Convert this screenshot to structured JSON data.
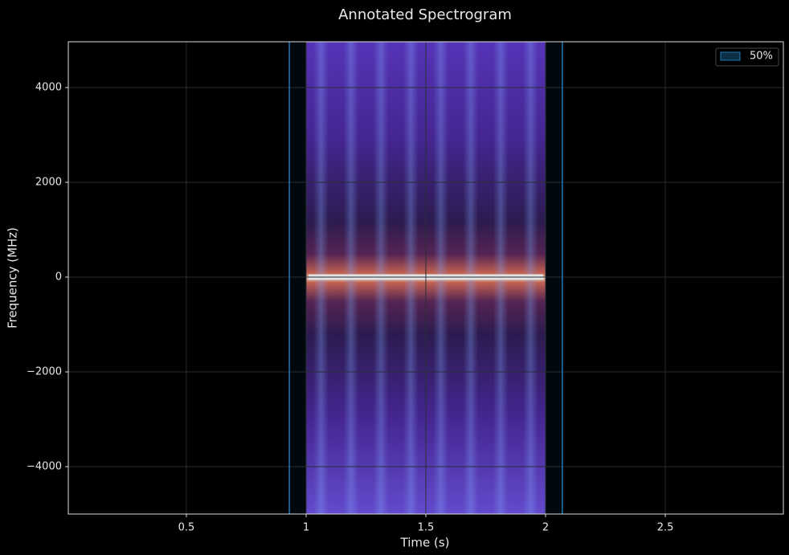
{
  "chart_data": {
    "type": "spectrogram",
    "title": "Annotated Spectrogram",
    "xlabel": "Time (s)",
    "ylabel": "Frequency (MHz)",
    "xlim": [
      0.007,
      2.993
    ],
    "ylim": [
      -5000,
      4966
    ],
    "xticks": [
      0.5,
      1.0,
      1.5,
      2.0,
      2.5
    ],
    "yticks": [
      -4000,
      -2000,
      0,
      2000,
      4000
    ],
    "signal_band": [
      1.0,
      2.0
    ],
    "carrier": 0,
    "span": [
      0.93,
      2.07
    ],
    "span_color": "#1f77b4",
    "span_label": "50%",
    "grid": true
  }
}
